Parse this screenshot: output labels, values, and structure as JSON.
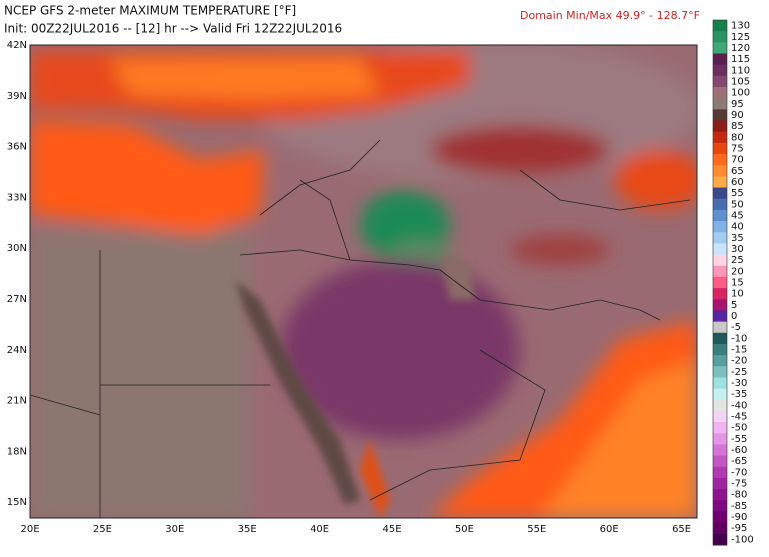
{
  "header": {
    "title": "NCEP GFS 2-meter MAXIMUM TEMPERATURE [°F]",
    "subtitle": "Init: 00Z22JUL2016 -- [12] hr --> Valid Fri 12Z22JUL2016",
    "domain_range": "Domain Min/Max  49.9° - 128.7°F"
  },
  "map": {
    "lat_labels": [
      "42N",
      "39N",
      "36N",
      "33N",
      "30N",
      "27N",
      "24N",
      "21N",
      "18N",
      "15N"
    ],
    "lon_labels": [
      "20E",
      "25E",
      "30E",
      "35E",
      "40E",
      "45E",
      "50E",
      "55E",
      "60E",
      "65E"
    ]
  },
  "colorbar": {
    "ticks": [
      130,
      125,
      120,
      115,
      110,
      105,
      100,
      95,
      90,
      85,
      80,
      75,
      70,
      65,
      60,
      55,
      50,
      45,
      40,
      35,
      30,
      25,
      20,
      15,
      10,
      5,
      0,
      -5,
      -10,
      -15,
      -20,
      -25,
      -30,
      -35,
      -40,
      -45,
      -50,
      -55,
      -60,
      -65,
      -70,
      -75,
      -80,
      -85,
      -90,
      -95,
      -100
    ],
    "colors": [
      "#15804e",
      "#2a9462",
      "#3fa876",
      "#5a2050",
      "#6e2e62",
      "#844870",
      "#a07078",
      "#8c7c72",
      "#5a3a38",
      "#8e1c18",
      "#c42810",
      "#e84810",
      "#ff6a1e",
      "#ff8a30",
      "#ffac48",
      "#3a4a8a",
      "#4c6cb0",
      "#6090d0",
      "#80b0e4",
      "#a4ccf2",
      "#c8e4ff",
      "#ffd4e4",
      "#ff98b8",
      "#ff5a88",
      "#d82462",
      "#a81470",
      "#5a24a4",
      "#c8c8c8",
      "#1c5a5a",
      "#3a7e7e",
      "#58a0a0",
      "#7cc0c0",
      "#a0e0e0",
      "#c4f2f2",
      "#e4e4e4",
      "#f4d4f4",
      "#f0b4f0",
      "#e494e4",
      "#d474d4",
      "#c456c4",
      "#b038b0",
      "#a024a0",
      "#901490",
      "#800a80",
      "#700070",
      "#600062",
      "#44004e"
    ]
  }
}
